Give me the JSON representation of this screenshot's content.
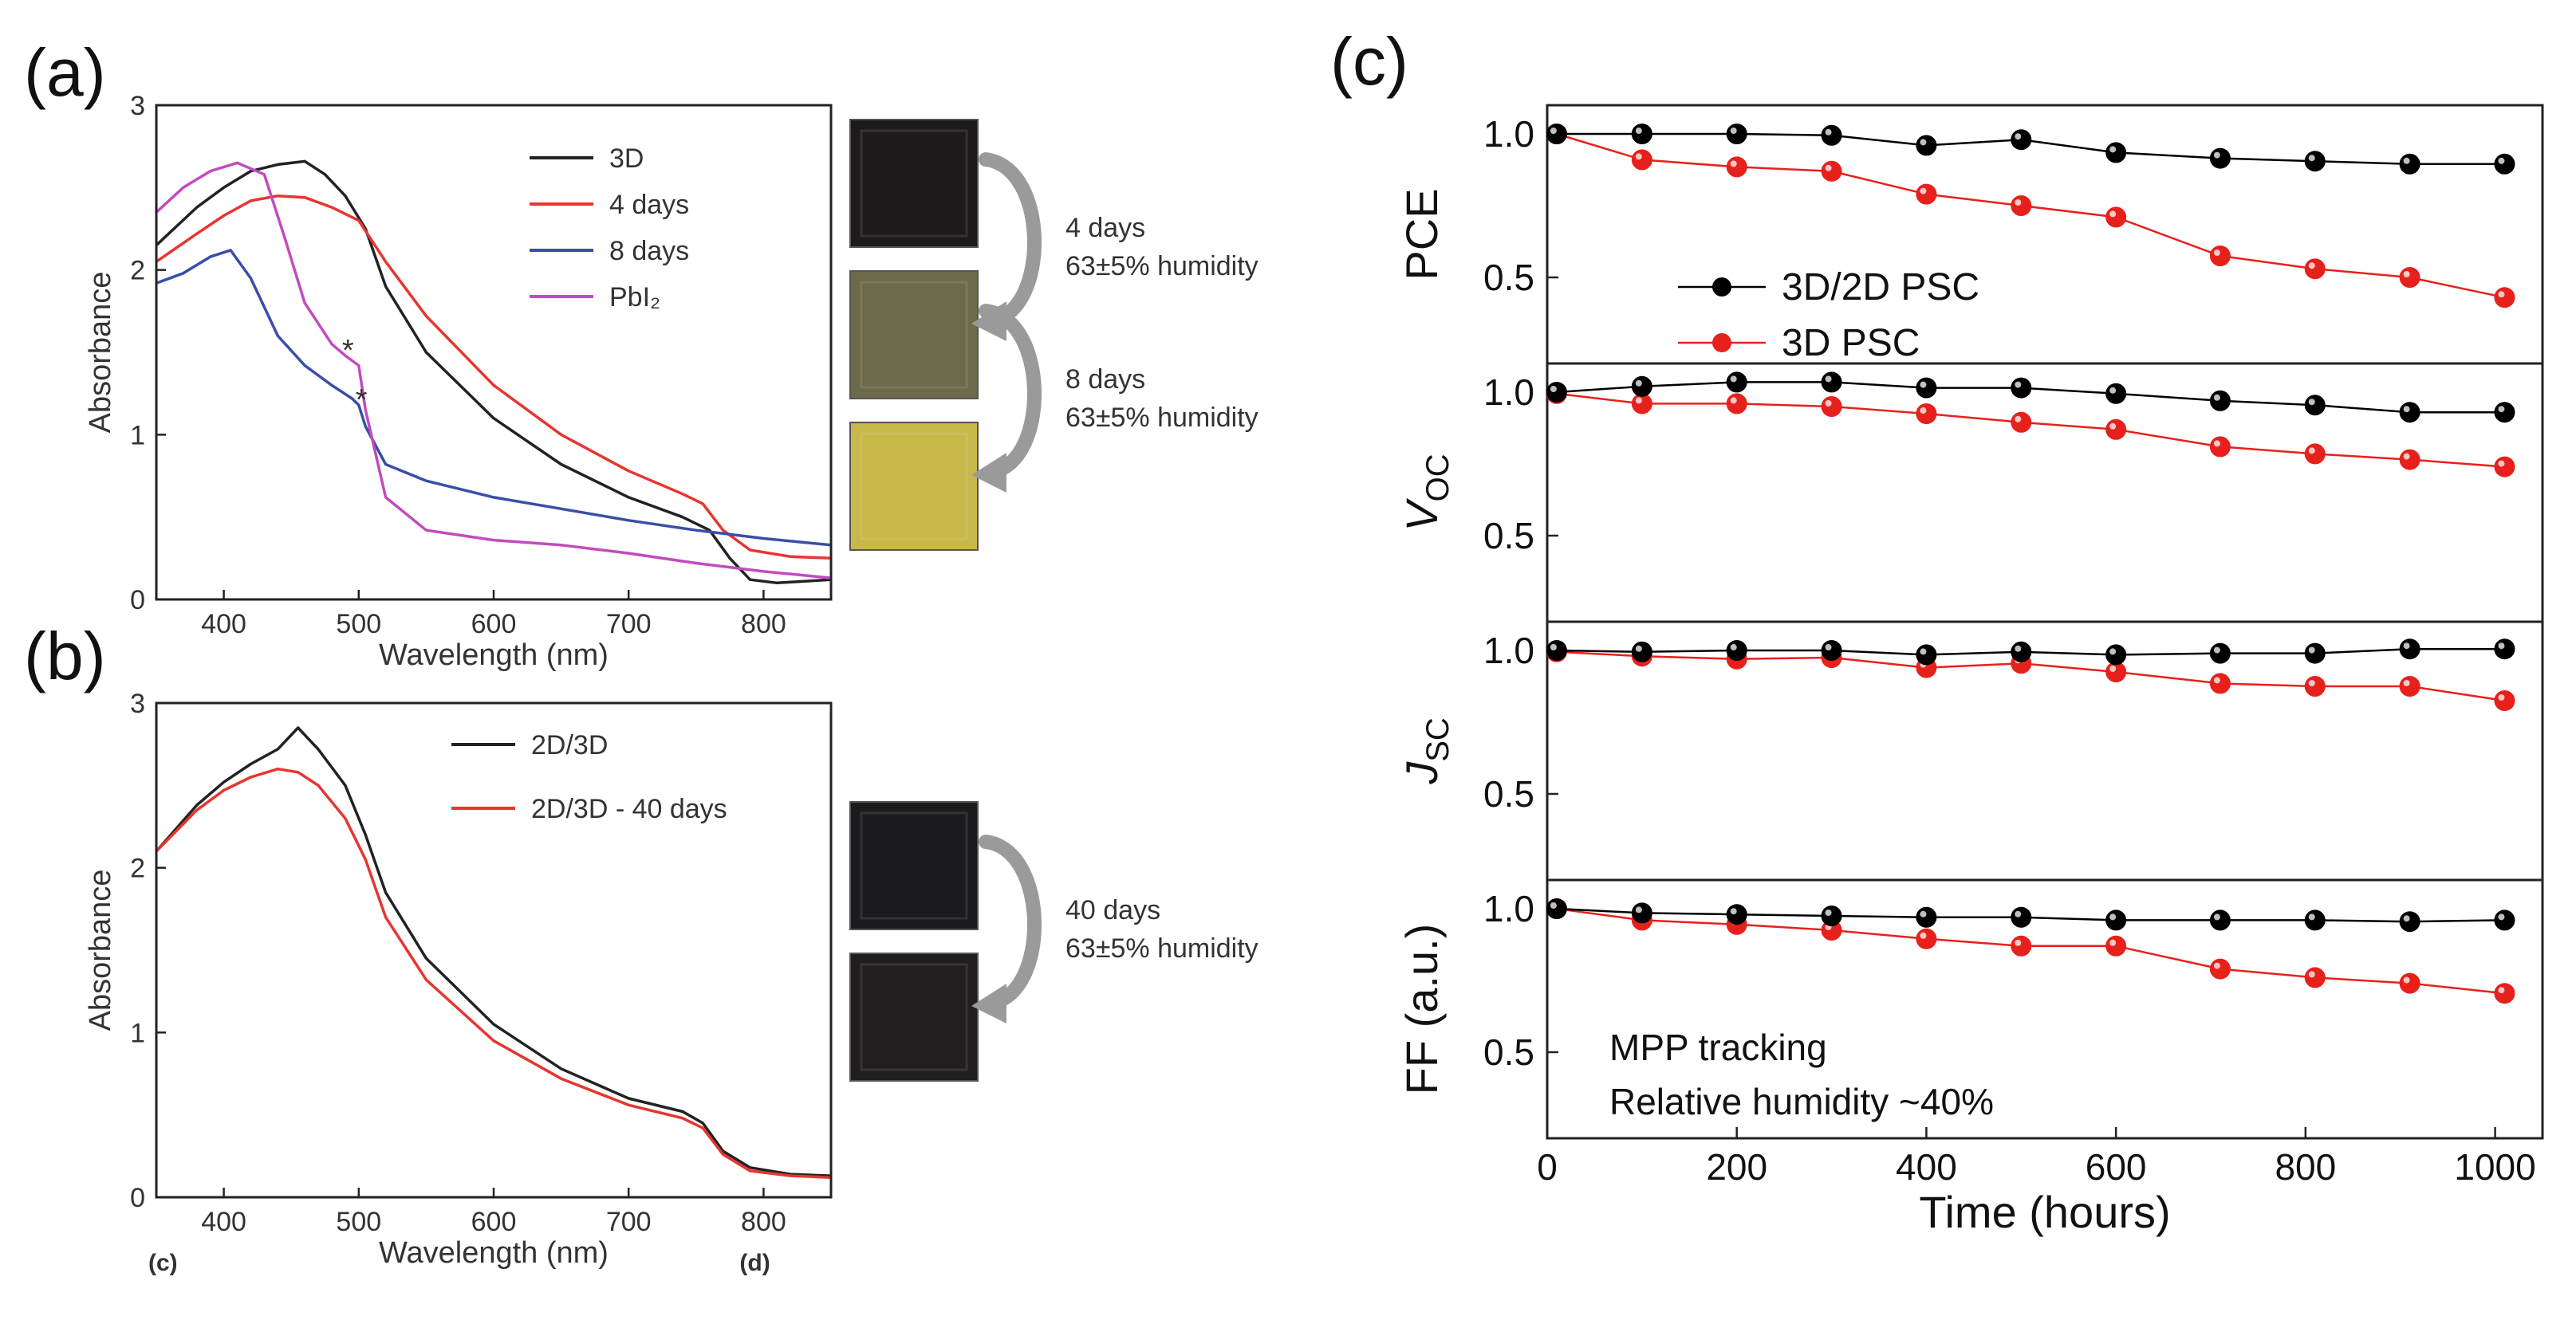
{
  "chart_data": [
    {
      "id": "a",
      "panel_label": "(a)",
      "type": "line",
      "xlabel": "Wavelength (nm)",
      "ylabel": "Absorbance",
      "xlim": [
        350,
        850
      ],
      "ylim": [
        0,
        3
      ],
      "xticks": [
        400,
        500,
        600,
        700,
        800
      ],
      "yticks": [
        0,
        1,
        2,
        3
      ],
      "legend_position": "top-right",
      "series": [
        {
          "name": "3D",
          "color": "#222222",
          "points": [
            [
              350,
              2.15
            ],
            [
              380,
              2.38
            ],
            [
              400,
              2.5
            ],
            [
              420,
              2.6
            ],
            [
              440,
              2.64
            ],
            [
              460,
              2.66
            ],
            [
              475,
              2.58
            ],
            [
              490,
              2.45
            ],
            [
              505,
              2.25
            ],
            [
              520,
              1.9
            ],
            [
              550,
              1.5
            ],
            [
              600,
              1.1
            ],
            [
              650,
              0.82
            ],
            [
              700,
              0.62
            ],
            [
              740,
              0.5
            ],
            [
              760,
              0.42
            ],
            [
              775,
              0.25
            ],
            [
              790,
              0.12
            ],
            [
              810,
              0.1
            ],
            [
              850,
              0.12
            ]
          ]
        },
        {
          "name": "4 days",
          "color": "#e8352f",
          "points": [
            [
              350,
              2.05
            ],
            [
              380,
              2.22
            ],
            [
              400,
              2.33
            ],
            [
              420,
              2.42
            ],
            [
              440,
              2.45
            ],
            [
              460,
              2.44
            ],
            [
              480,
              2.38
            ],
            [
              500,
              2.3
            ],
            [
              520,
              2.05
            ],
            [
              550,
              1.72
            ],
            [
              600,
              1.3
            ],
            [
              650,
              1.0
            ],
            [
              700,
              0.78
            ],
            [
              740,
              0.64
            ],
            [
              755,
              0.58
            ],
            [
              770,
              0.42
            ],
            [
              790,
              0.3
            ],
            [
              820,
              0.26
            ],
            [
              850,
              0.25
            ]
          ]
        },
        {
          "name": "8 days",
          "color": "#3a4ea8",
          "points": [
            [
              350,
              1.92
            ],
            [
              370,
              1.98
            ],
            [
              390,
              2.08
            ],
            [
              405,
              2.12
            ],
            [
              420,
              1.95
            ],
            [
              440,
              1.6
            ],
            [
              460,
              1.42
            ],
            [
              480,
              1.3
            ],
            [
              495,
              1.22
            ],
            [
              500,
              1.18
            ],
            [
              505,
              1.05
            ],
            [
              520,
              0.82
            ],
            [
              550,
              0.72
            ],
            [
              600,
              0.62
            ],
            [
              650,
              0.55
            ],
            [
              700,
              0.48
            ],
            [
              750,
              0.42
            ],
            [
              800,
              0.37
            ],
            [
              850,
              0.33
            ]
          ]
        },
        {
          "name": "PbI₂",
          "color": "#c24bbf",
          "points": [
            [
              350,
              2.35
            ],
            [
              370,
              2.5
            ],
            [
              390,
              2.6
            ],
            [
              410,
              2.65
            ],
            [
              430,
              2.58
            ],
            [
              445,
              2.2
            ],
            [
              460,
              1.8
            ],
            [
              480,
              1.55
            ],
            [
              490,
              1.48
            ],
            [
              500,
              1.42
            ],
            [
              505,
              1.15
            ],
            [
              520,
              0.62
            ],
            [
              550,
              0.42
            ],
            [
              600,
              0.36
            ],
            [
              650,
              0.33
            ],
            [
              700,
              0.28
            ],
            [
              750,
              0.22
            ],
            [
              800,
              0.17
            ],
            [
              850,
              0.13
            ]
          ]
        }
      ],
      "markers": [
        {
          "text": "*",
          "x": 492,
          "y": 1.52
        },
        {
          "text": "*",
          "x": 502,
          "y": 1.22
        }
      ],
      "images": [
        {
          "label": "fresh 3D film",
          "color": "#1c1a1a"
        },
        {
          "label": "film after 4 days",
          "color": "#6b6a4a"
        },
        {
          "label": "film after 8 days",
          "color": "#c7b84a"
        }
      ],
      "annotations": [
        {
          "line1": "4 days",
          "line2": "63±5% humidity"
        },
        {
          "line1": "8 days",
          "line2": "63±5% humidity"
        }
      ]
    },
    {
      "id": "b",
      "panel_label": "(b)",
      "type": "line",
      "xlabel": "Wavelength (nm)",
      "ylabel": "Absorbance",
      "xlim": [
        350,
        850
      ],
      "ylim": [
        0,
        3
      ],
      "xticks": [
        400,
        500,
        600,
        700,
        800
      ],
      "yticks": [
        0,
        1,
        2,
        3
      ],
      "legend_position": "top-right",
      "corner_labels": [
        "(c)",
        "(d)"
      ],
      "series": [
        {
          "name": "2D/3D",
          "color": "#222222",
          "points": [
            [
              350,
              2.1
            ],
            [
              380,
              2.38
            ],
            [
              400,
              2.52
            ],
            [
              420,
              2.63
            ],
            [
              440,
              2.72
            ],
            [
              455,
              2.85
            ],
            [
              470,
              2.72
            ],
            [
              490,
              2.5
            ],
            [
              505,
              2.2
            ],
            [
              520,
              1.85
            ],
            [
              550,
              1.45
            ],
            [
              600,
              1.05
            ],
            [
              650,
              0.78
            ],
            [
              700,
              0.6
            ],
            [
              740,
              0.52
            ],
            [
              755,
              0.45
            ],
            [
              770,
              0.28
            ],
            [
              790,
              0.18
            ],
            [
              820,
              0.14
            ],
            [
              850,
              0.13
            ]
          ]
        },
        {
          "name": "2D/3D - 40 days",
          "color": "#e8352f",
          "points": [
            [
              350,
              2.1
            ],
            [
              380,
              2.35
            ],
            [
              400,
              2.47
            ],
            [
              420,
              2.55
            ],
            [
              440,
              2.6
            ],
            [
              455,
              2.58
            ],
            [
              470,
              2.5
            ],
            [
              490,
              2.3
            ],
            [
              505,
              2.05
            ],
            [
              520,
              1.7
            ],
            [
              550,
              1.32
            ],
            [
              600,
              0.95
            ],
            [
              650,
              0.72
            ],
            [
              700,
              0.56
            ],
            [
              740,
              0.48
            ],
            [
              755,
              0.42
            ],
            [
              770,
              0.26
            ],
            [
              790,
              0.16
            ],
            [
              820,
              0.13
            ],
            [
              850,
              0.12
            ]
          ]
        }
      ],
      "images": [
        {
          "label": "fresh 2D/3D film",
          "color": "#1b1a1c"
        },
        {
          "label": "film after 40 days",
          "color": "#211e1f"
        }
      ],
      "annotations": [
        {
          "line1": "40 days",
          "line2": "63±5% humidity"
        }
      ]
    },
    {
      "id": "c",
      "panel_label": "(c)",
      "type": "line",
      "xlabel": "Time (hours)",
      "xlim": [
        0,
        1050
      ],
      "xticks": [
        0,
        200,
        400,
        600,
        800,
        1000
      ],
      "x": [
        10,
        100,
        200,
        300,
        400,
        500,
        600,
        710,
        810,
        910,
        1010
      ],
      "legend_position": "top-left of PCE subplot",
      "legend": [
        "3D/2D PSC",
        "3D PSC"
      ],
      "series_colors": {
        "3D/2D PSC": "#000000",
        "3D PSC": "#e8201c"
      },
      "note_lines": [
        "MPP tracking",
        "Relative humidity ~40%"
      ],
      "subplots": [
        {
          "ylabel": "PCE",
          "ylim": [
            0.2,
            1.1
          ],
          "yticks": [
            0.5,
            1.0
          ],
          "series": [
            {
              "name": "3D/2D PSC",
              "values": [
                1.0,
                1.0,
                1.0,
                0.995,
                0.96,
                0.98,
                0.935,
                0.915,
                0.905,
                0.895,
                0.895
              ]
            },
            {
              "name": "3D PSC",
              "values": [
                1.0,
                0.91,
                0.885,
                0.87,
                0.79,
                0.75,
                0.71,
                0.575,
                0.53,
                0.5,
                0.43
              ]
            }
          ]
        },
        {
          "ylabel": "V",
          "ylabel_sub": "OC",
          "ylim": [
            0.2,
            1.1
          ],
          "yticks": [
            0.5,
            1.0
          ],
          "series": [
            {
              "name": "3D/2D PSC",
              "values": [
                1.0,
                1.02,
                1.035,
                1.035,
                1.015,
                1.015,
                0.995,
                0.97,
                0.955,
                0.93,
                0.93
              ]
            },
            {
              "name": "3D PSC",
              "values": [
                0.995,
                0.96,
                0.96,
                0.95,
                0.925,
                0.895,
                0.87,
                0.81,
                0.785,
                0.765,
                0.74
              ]
            }
          ]
        },
        {
          "ylabel": "J",
          "ylabel_sub": "SC",
          "ylim": [
            0.2,
            1.1
          ],
          "yticks": [
            0.5,
            1.0
          ],
          "series": [
            {
              "name": "3D/2D PSC",
              "values": [
                1.0,
                0.995,
                1.0,
                1.0,
                0.985,
                0.995,
                0.985,
                0.99,
                0.99,
                1.005,
                1.005
              ]
            },
            {
              "name": "3D PSC",
              "values": [
                0.995,
                0.98,
                0.97,
                0.975,
                0.94,
                0.955,
                0.925,
                0.885,
                0.875,
                0.875,
                0.825
              ]
            }
          ]
        },
        {
          "ylabel": "FF (a.u.)",
          "ylim": [
            0.2,
            1.1
          ],
          "yticks": [
            0.5,
            1.0
          ],
          "series": [
            {
              "name": "3D/2D PSC",
              "values": [
                1.0,
                0.985,
                0.98,
                0.975,
                0.97,
                0.97,
                0.96,
                0.96,
                0.96,
                0.955,
                0.96
              ]
            },
            {
              "name": "3D PSC",
              "values": [
                1.0,
                0.96,
                0.945,
                0.925,
                0.895,
                0.87,
                0.87,
                0.79,
                0.76,
                0.74,
                0.705
              ]
            }
          ]
        }
      ]
    }
  ]
}
